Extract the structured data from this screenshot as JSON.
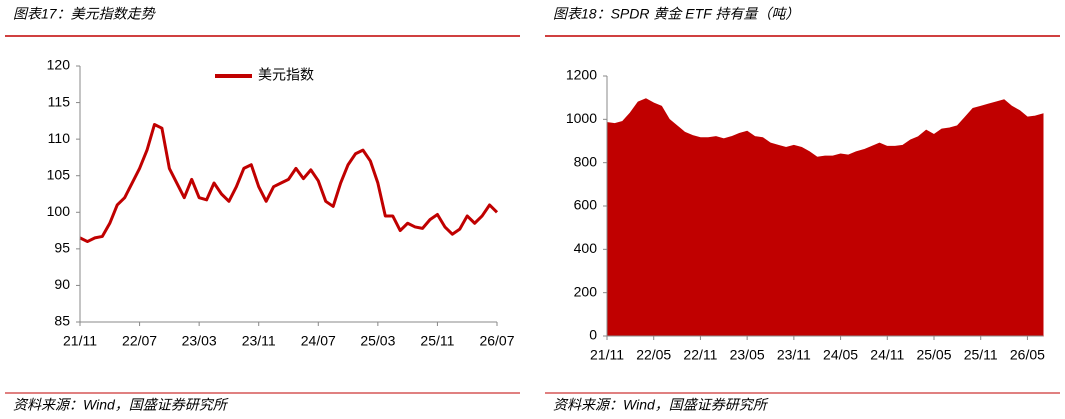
{
  "chart_data": [
    {
      "type": "line",
      "title": "图表17：美元指数走势",
      "source": "资料来源：Wind，国盛证券研究所",
      "x": [
        "21/11",
        "21/12",
        "22/01",
        "22/02",
        "22/03",
        "22/04",
        "22/05",
        "22/06",
        "22/07",
        "22/08",
        "22/09",
        "22/10",
        "22/11",
        "22/12",
        "23/01",
        "23/02",
        "23/03",
        "23/04",
        "23/05",
        "23/06",
        "23/07",
        "23/08",
        "23/09",
        "23/10",
        "23/11",
        "23/12",
        "24/01",
        "24/02",
        "24/03",
        "24/04",
        "24/05",
        "24/06",
        "24/07",
        "24/08",
        "24/09",
        "24/10",
        "24/11",
        "24/12",
        "25/01",
        "25/02",
        "25/03",
        "25/04",
        "25/05",
        "25/06",
        "25/07",
        "25/08",
        "25/09",
        "25/10",
        "25/11",
        "25/12",
        "26/01",
        "26/02",
        "26/03",
        "26/04",
        "26/05",
        "26/06",
        "26/07"
      ],
      "series": [
        {
          "name": "美元指数",
          "color": "#c00000",
          "values": [
            96.5,
            96,
            96.5,
            96.7,
            98.5,
            101,
            102,
            104,
            106,
            108.5,
            112,
            111.5,
            106,
            104,
            102,
            104.5,
            102,
            101.7,
            104,
            102.5,
            101.5,
            103.5,
            106,
            106.5,
            103.5,
            101.5,
            103.5,
            104,
            104.5,
            106,
            104.6,
            105.8,
            104.3,
            101.5,
            100.8,
            104,
            106.5,
            108,
            108.5,
            107,
            104,
            99.5,
            99.5,
            97.5,
            98.5,
            98,
            97.8,
            99,
            99.7,
            98,
            97,
            97.7,
            99.5,
            98.5,
            99.5,
            101,
            100
          ]
        }
      ],
      "xticks": [
        "21/11",
        "22/07",
        "23/03",
        "23/11",
        "24/07",
        "25/03",
        "25/11",
        "26/07"
      ],
      "ylim": [
        85,
        120
      ],
      "yticks": [
        85,
        90,
        95,
        100,
        105,
        110,
        115,
        120
      ],
      "legend": "top",
      "grid": false
    },
    {
      "type": "area",
      "title": "图表18：SPDR 黄金 ETF 持有量（吨）",
      "source": "资料来源：Wind，国盛证券研究所",
      "x": [
        "21/11",
        "21/12",
        "22/01",
        "22/02",
        "22/03",
        "22/04",
        "22/05",
        "22/06",
        "22/07",
        "22/08",
        "22/09",
        "22/10",
        "22/11",
        "22/12",
        "23/01",
        "23/02",
        "23/03",
        "23/04",
        "23/05",
        "23/06",
        "23/07",
        "23/08",
        "23/09",
        "23/10",
        "23/11",
        "23/12",
        "24/01",
        "24/02",
        "24/03",
        "24/04",
        "24/05",
        "24/06",
        "24/07",
        "24/08",
        "24/09",
        "24/10",
        "24/11",
        "24/12",
        "25/01",
        "25/02",
        "25/03",
        "25/04",
        "25/05",
        "25/06",
        "25/07",
        "25/08",
        "25/09",
        "25/10",
        "25/11",
        "25/12",
        "26/01",
        "26/02",
        "26/03",
        "26/04",
        "26/05",
        "26/06",
        "26/07"
      ],
      "values": [
        985,
        980,
        990,
        1030,
        1080,
        1095,
        1075,
        1060,
        1000,
        970,
        940,
        925,
        915,
        915,
        920,
        910,
        920,
        935,
        945,
        920,
        915,
        890,
        880,
        870,
        880,
        870,
        850,
        825,
        830,
        830,
        840,
        835,
        850,
        860,
        875,
        890,
        875,
        875,
        880,
        905,
        920,
        950,
        930,
        955,
        960,
        970,
        1010,
        1050,
        1060,
        1070,
        1080,
        1090,
        1060,
        1040,
        1010,
        1015,
        1025
      ],
      "color": "#c00000",
      "xticks": [
        "21/11",
        "22/05",
        "22/11",
        "23/05",
        "23/11",
        "24/05",
        "24/11",
        "25/05",
        "25/11",
        "26/05"
      ],
      "ylim": [
        0,
        1200
      ],
      "yticks": [
        0,
        200,
        400,
        600,
        800,
        1000,
        1200
      ],
      "grid": false
    }
  ]
}
